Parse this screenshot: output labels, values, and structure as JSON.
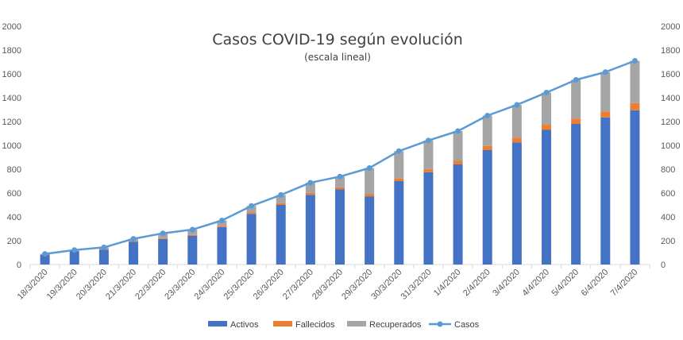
{
  "chart_data": {
    "type": "bar",
    "title": "Casos COVID-19 según evolución",
    "subtitle": "(escala lineal)",
    "stacked": true,
    "categories": [
      "18/3/2020",
      "19/3/2020",
      "20/3/2020",
      "21/3/2020",
      "22/3/2020",
      "23/3/2020",
      "24/3/2020",
      "25/3/2020",
      "26/3/2020",
      "27/3/2020",
      "28/3/2020",
      "29/3/2020",
      "30/3/2020",
      "31/3/2020",
      "1/4/2020",
      "2/4/2020",
      "3/4/2020",
      "4/4/2020",
      "5/4/2020",
      "6/4/2020",
      "7/4/2020"
    ],
    "series": [
      {
        "name": "Activos",
        "type": "bar",
        "color": "#4472C4",
        "values": [
          80,
          110,
          125,
          190,
          215,
          240,
          315,
          425,
          500,
          585,
          630,
          570,
          700,
          775,
          840,
          960,
          1025,
          1130,
          1180,
          1235,
          1295
        ]
      },
      {
        "name": "Fallecidos",
        "type": "bar",
        "color": "#ED7D31",
        "values": [
          3,
          4,
          5,
          6,
          7,
          8,
          10,
          12,
          14,
          17,
          18,
          20,
          22,
          26,
          30,
          35,
          40,
          43,
          45,
          50,
          60
        ]
      },
      {
        "name": "Recuperados",
        "type": "bar",
        "color": "#A5A5A5",
        "values": [
          6,
          8,
          14,
          20,
          40,
          45,
          45,
          55,
          70,
          85,
          90,
          220,
          230,
          240,
          250,
          255,
          275,
          270,
          325,
          330,
          355
        ]
      },
      {
        "name": "Casos",
        "type": "line",
        "color": "#5B9BD5",
        "values": [
          89,
          122,
          144,
          216,
          262,
          293,
          370,
          492,
          584,
          687,
          738,
          810,
          952,
          1041,
          1120,
          1250,
          1340,
          1443,
          1550,
          1615,
          1710
        ]
      }
    ],
    "ylim": [
      0,
      2000
    ],
    "yticks": [
      0,
      200,
      400,
      600,
      800,
      1000,
      1200,
      1400,
      1600,
      1800,
      2000
    ],
    "secondary_y": true,
    "grid": false,
    "legend_position": "bottom"
  }
}
